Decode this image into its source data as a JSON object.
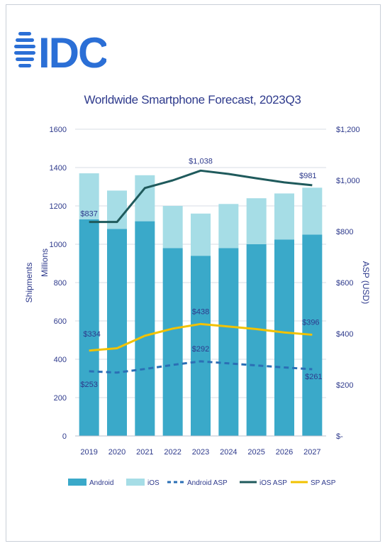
{
  "brand": {
    "logo_text": "IDC",
    "logo_color": "#2b6fd6"
  },
  "chart_data": {
    "type": "bar",
    "title": "Worldwide Smartphone Forecast, 2023Q3",
    "categories": [
      "2019",
      "2020",
      "2021",
      "2022",
      "2023",
      "2024",
      "2025",
      "2026",
      "2027"
    ],
    "left_axis": {
      "label_outer": "Shipments",
      "label_inner": "Millions",
      "ylim": [
        0,
        1600
      ],
      "ticks": [
        "0",
        "200",
        "400",
        "600",
        "800",
        "1000",
        "1200",
        "1400",
        "1600"
      ]
    },
    "right_axis": {
      "label": "ASP (USD)",
      "ylim": [
        0,
        1200
      ],
      "ticks": [
        "$-",
        "$200",
        "$400",
        "$600",
        "$800",
        "$1,000",
        "$1,200"
      ]
    },
    "bar_series": [
      {
        "name": "Android",
        "color": "#3aa9c9",
        "values": [
          1130,
          1080,
          1120,
          980,
          940,
          980,
          1000,
          1025,
          1050
        ]
      },
      {
        "name": "iOS",
        "color": "#a6dde6",
        "values": [
          240,
          200,
          240,
          220,
          220,
          230,
          240,
          240,
          245
        ]
      }
    ],
    "line_series": [
      {
        "name": "Android ASP",
        "color": "#2b6fb5",
        "style": "dashed",
        "values": [
          253,
          248,
          262,
          278,
          292,
          284,
          276,
          268,
          261
        ]
      },
      {
        "name": "iOS ASP",
        "color": "#1f5a5c",
        "style": "solid",
        "values": [
          837,
          837,
          970,
          1000,
          1038,
          1025,
          1008,
          992,
          981
        ]
      },
      {
        "name": "SP ASP",
        "color": "#f2c200",
        "style": "solid",
        "values": [
          334,
          343,
          392,
          420,
          438,
          428,
          418,
          405,
          396
        ]
      }
    ],
    "data_labels": [
      {
        "series": "iOS ASP",
        "index": 0,
        "text": "$837"
      },
      {
        "series": "iOS ASP",
        "index": 4,
        "text": "$1,038"
      },
      {
        "series": "iOS ASP",
        "index": 8,
        "text": "$981"
      },
      {
        "series": "SP ASP",
        "index": 0,
        "text": "$334"
      },
      {
        "series": "SP ASP",
        "index": 4,
        "text": "$438"
      },
      {
        "series": "SP ASP",
        "index": 8,
        "text": "$396"
      },
      {
        "series": "Android ASP",
        "index": 0,
        "text": "$253"
      },
      {
        "series": "Android ASP",
        "index": 4,
        "text": "$292"
      },
      {
        "series": "Android ASP",
        "index": 8,
        "text": "$261"
      }
    ],
    "legend": {
      "position": "bottom",
      "entries": [
        "Android",
        "iOS",
        "Android ASP",
        "iOS ASP",
        "SP ASP"
      ]
    },
    "grid": true,
    "axis_color": "#2e3a8c",
    "grid_color": "#d7dce6"
  }
}
